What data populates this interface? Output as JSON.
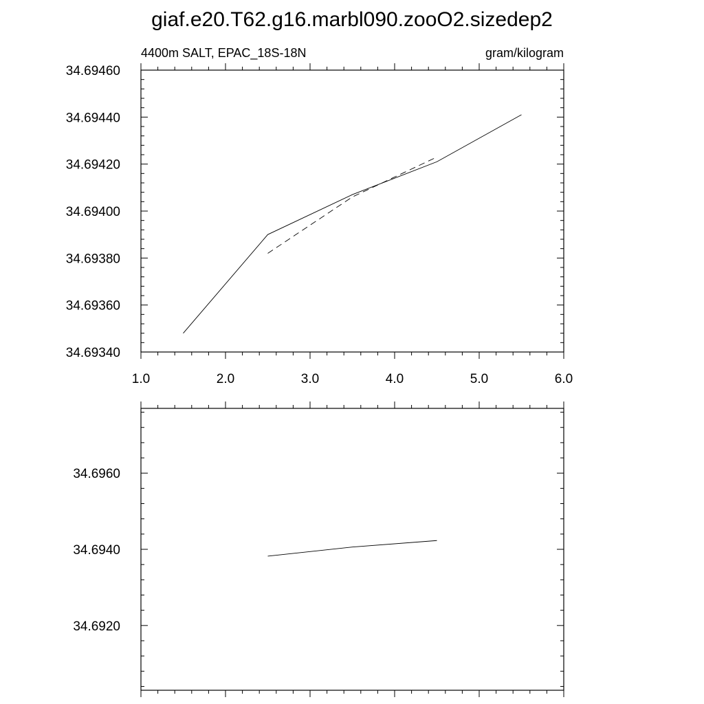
{
  "figure": {
    "title": "giaf.e20.T62.g16.marbl090.zooO2.sizedep2"
  },
  "chart_data": [
    {
      "type": "line",
      "left_label": "4400m SALT, EPAC_18S-18N",
      "right_label": "gram/kilogram",
      "xlim": [
        1.0,
        6.0
      ],
      "ylim": [
        34.6934,
        34.6946
      ],
      "x_ticks": [
        1.0,
        2.0,
        3.0,
        4.0,
        5.0,
        6.0
      ],
      "x_tick_labels": [
        "1.0",
        "2.0",
        "3.0",
        "4.0",
        "5.0",
        "6.0"
      ],
      "y_ticks": [
        34.6934,
        34.6936,
        34.6938,
        34.694,
        34.6942,
        34.6944,
        34.6946
      ],
      "y_tick_labels": [
        "34.69340",
        "34.69360",
        "34.69380",
        "34.69400",
        "34.69420",
        "34.69440",
        "34.69460"
      ],
      "grid": false,
      "series": [
        {
          "style": "solid",
          "x": [
            1.5,
            2.5,
            3.5,
            4.5,
            5.5
          ],
          "values": [
            34.69348,
            34.6939,
            34.69407,
            34.69421,
            34.69441
          ]
        },
        {
          "style": "dashed",
          "x": [
            2.5,
            3.5,
            4.5
          ],
          "values": [
            34.69382,
            34.69406,
            34.69423
          ]
        }
      ]
    },
    {
      "type": "line",
      "xlim": [
        1.0,
        6.0
      ],
      "ylim": [
        34.6903,
        34.6977
      ],
      "x_ticks": [
        1.0,
        2.0,
        3.0,
        4.0,
        5.0,
        6.0
      ],
      "x_tick_labels": [
        "",
        "",
        "",
        "",
        "",
        ""
      ],
      "y_ticks": [
        34.692,
        34.694,
        34.696
      ],
      "y_tick_labels": [
        "34.6920",
        "34.6940",
        "34.6960"
      ],
      "grid": false,
      "series": [
        {
          "style": "solid",
          "x": [
            2.5,
            3.5,
            4.5
          ],
          "values": [
            34.69382,
            34.69406,
            34.69423
          ]
        }
      ]
    }
  ]
}
